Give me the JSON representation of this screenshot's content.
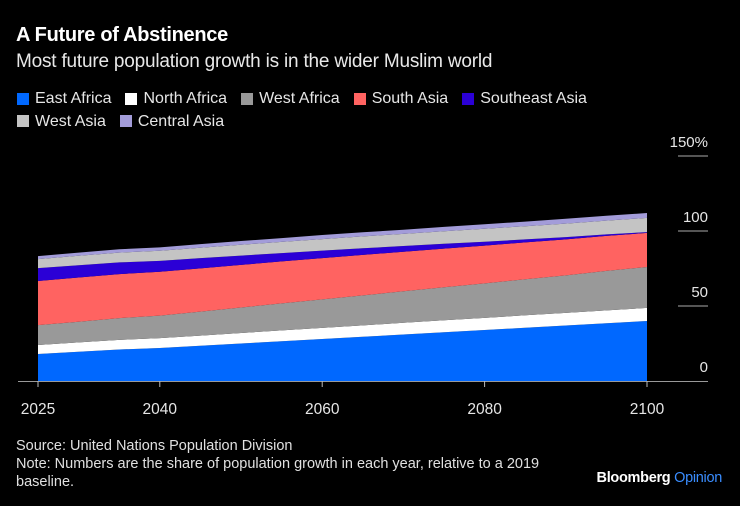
{
  "header": {
    "title": "A Future of Abstinence",
    "subtitle": "Most future population growth is in the wider Muslim world"
  },
  "footer": {
    "source": "Source: United Nations Population Division",
    "note": "Note: Numbers are the share of population growth in each year, relative to a 2019 baseline.",
    "brand": "Bloomberg",
    "brand_suffix": "Opinion"
  },
  "chart_data": {
    "type": "area",
    "stacked": true,
    "title": "A Future of Abstinence",
    "subtitle": "Most future population growth is in the wider Muslim world",
    "xlabel": "",
    "ylabel": "",
    "x_ticks": [
      2025,
      2040,
      2060,
      2080,
      2100
    ],
    "x_range": [
      2025,
      2100
    ],
    "y_ticks": [
      0,
      50,
      100,
      150
    ],
    "y_tick_labels": [
      "0",
      "50",
      "100",
      "150%"
    ],
    "ylim": [
      0,
      150
    ],
    "y_axis_position": "right",
    "grid": true,
    "legend_position": "top",
    "x": [
      2025,
      2030,
      2035,
      2040,
      2045,
      2050,
      2055,
      2060,
      2065,
      2070,
      2075,
      2080,
      2085,
      2090,
      2095,
      2100
    ],
    "series": [
      {
        "name": "East Africa",
        "color": "#0068ff",
        "values": [
          18.0,
          19.5,
          21.0,
          22.0,
          23.5,
          25.0,
          26.5,
          28.0,
          29.5,
          31.0,
          32.5,
          34.0,
          35.5,
          37.0,
          38.5,
          40.0
        ]
      },
      {
        "name": "North Africa",
        "color": "#ffffff",
        "values": [
          6.0,
          6.2,
          6.4,
          6.6,
          6.8,
          7.0,
          7.2,
          7.4,
          7.6,
          7.8,
          8.0,
          8.1,
          8.3,
          8.4,
          8.6,
          8.7
        ]
      },
      {
        "name": "West Africa",
        "color": "#999999",
        "values": [
          13.3,
          13.8,
          14.5,
          15.0,
          16.0,
          17.0,
          18.0,
          19.0,
          20.0,
          21.0,
          22.0,
          23.0,
          24.0,
          25.0,
          26.3,
          27.3
        ]
      },
      {
        "name": "South Asia",
        "color": "#ff6361",
        "values": [
          29.4,
          29.5,
          29.4,
          29.2,
          28.8,
          28.4,
          28.0,
          27.5,
          27.0,
          26.4,
          25.8,
          25.2,
          24.6,
          24.0,
          23.3,
          22.7
        ]
      },
      {
        "name": "Southeast Asia",
        "color": "#2b00d6",
        "values": [
          8.6,
          8.2,
          7.8,
          7.3,
          6.8,
          6.2,
          5.6,
          5.0,
          4.4,
          3.8,
          3.2,
          2.6,
          2.0,
          1.5,
          1.0,
          0.6
        ]
      },
      {
        "name": "West Asia",
        "color": "#c4c4c4",
        "values": [
          6.0,
          6.3,
          6.5,
          6.7,
          7.0,
          7.2,
          7.4,
          7.7,
          7.9,
          8.1,
          8.3,
          8.6,
          8.8,
          9.0,
          9.2,
          9.4
        ]
      },
      {
        "name": "Central Asia",
        "color": "#a39cd9",
        "values": [
          2.0,
          2.1,
          2.2,
          2.3,
          2.4,
          2.5,
          2.6,
          2.7,
          2.7,
          2.8,
          2.9,
          3.0,
          3.1,
          3.2,
          3.2,
          3.3
        ]
      }
    ]
  }
}
